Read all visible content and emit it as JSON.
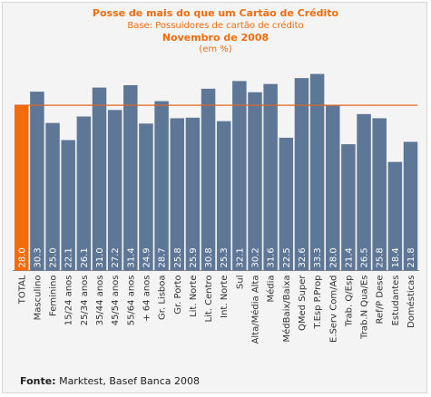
{
  "header": {
    "title": "Posse de mais do que um Cartão de Crédito",
    "subtitle": "Base: Possuidores de cartão de crédito",
    "period": "Novembro de 2008",
    "unit": "(em %)"
  },
  "footer": {
    "source_label": "Fonte:",
    "source_text": " Marktest, Basef Banca 2008"
  },
  "colors": {
    "bar": "#5f7797",
    "highlight": "#f26c0d",
    "reference_line": "#e0662a",
    "value_label": "#ffffff"
  },
  "chart_data": {
    "type": "bar",
    "categories": [
      "TOTAL",
      "Masculino",
      "Feminino",
      "15/24 anos",
      "25/34 anos",
      "35/44 anos",
      "45/54 anos",
      "55/64 anos",
      "+ 64 anos",
      "Gr. Lisboa",
      "Gr. Porto",
      "Lit. Norte",
      "Lit. Centro",
      "Int. Norte",
      "Sul",
      "Alta/Média Alta",
      "Média",
      "MédBaix/Baixa",
      "QMed Super",
      "T.Esp P.Prop",
      "E.Serv Com/Ad",
      "Trab. Q/Esp",
      "Trab.N Qua/Es",
      "Ref/P Dese",
      "Estudantes",
      "Domésticas"
    ],
    "values": [
      28.0,
      30.3,
      25.0,
      22.1,
      26.1,
      31.0,
      27.2,
      31.4,
      24.9,
      28.7,
      25.8,
      25.9,
      30.8,
      25.3,
      32.1,
      30.2,
      31.6,
      22.5,
      32.6,
      33.3,
      28.0,
      21.4,
      26.5,
      25.8,
      18.4,
      21.8
    ],
    "value_labels": [
      "28.0",
      "30.3",
      "25.0",
      "22.1",
      "26.1",
      "31.0",
      "27.2",
      "31.4",
      "24.9",
      "28.7",
      "25.8",
      "25.9",
      "30.8",
      "25.3",
      "32.1",
      "30.2",
      "31.6",
      "22.5",
      "32.6",
      "33.3",
      "28.0",
      "21.4",
      "26.5",
      "25.8",
      "18.4",
      "21.8"
    ],
    "highlight_index": 0,
    "reference_value": 28.0,
    "ylim": [
      0,
      36
    ],
    "grid": false,
    "legend": "none"
  }
}
